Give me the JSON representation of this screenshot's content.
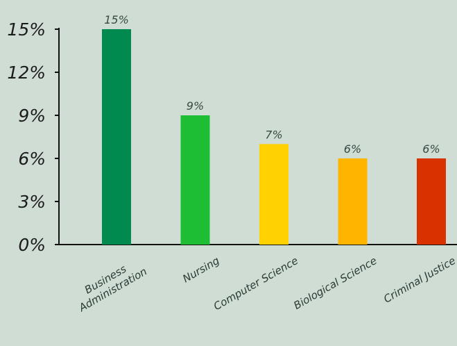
{
  "chart_data": {
    "type": "bar",
    "title": "",
    "xlabel": "",
    "ylabel": "",
    "ylim": [
      0,
      15
    ],
    "yticks": [
      "0%",
      "3%",
      "6%",
      "9%",
      "12%",
      "15%"
    ],
    "ytick_values": [
      0,
      3,
      6,
      9,
      12,
      15
    ],
    "grid": false,
    "legend": "none",
    "categories": [
      [
        "Business",
        "Administration"
      ],
      [
        "Nursing"
      ],
      [
        "Computer Science"
      ],
      [
        "Biological Science"
      ],
      [
        "Criminal Justice"
      ]
    ],
    "values": [
      15,
      9,
      7,
      6,
      6
    ],
    "data_labels": [
      "15%",
      "9%",
      "7%",
      "6%",
      "6%"
    ],
    "colors": [
      "#008a4f",
      "#1dbe33",
      "#ffd200",
      "#ffb400",
      "#d93100"
    ]
  }
}
